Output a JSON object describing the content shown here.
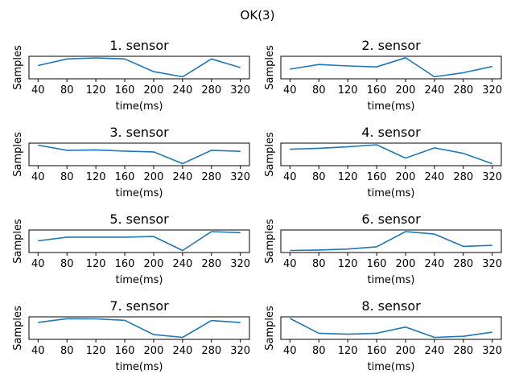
{
  "figure_title": "OK(3)",
  "chart_data": [
    {
      "type": "line",
      "title": "1. sensor",
      "xlabel": "time(ms)",
      "ylabel": "Samples",
      "x": [
        40,
        80,
        120,
        160,
        200,
        240,
        280,
        320
      ],
      "x_ticks": [
        "40",
        "80",
        "120",
        "160",
        "200",
        "240",
        "280",
        "320"
      ],
      "y": [
        0.6,
        0.92,
        0.97,
        0.92,
        0.3,
        0.05,
        0.92,
        0.5
      ],
      "ylim": [
        0,
        1
      ]
    },
    {
      "type": "line",
      "title": "2. sensor",
      "xlabel": "time(ms)",
      "ylabel": "Samples",
      "x": [
        40,
        80,
        120,
        160,
        200,
        240,
        280,
        320
      ],
      "x_ticks": [
        "40",
        "80",
        "120",
        "160",
        "200",
        "240",
        "280",
        "320"
      ],
      "y": [
        0.42,
        0.65,
        0.58,
        0.53,
        0.98,
        0.05,
        0.25,
        0.55
      ],
      "ylim": [
        0,
        1
      ]
    },
    {
      "type": "line",
      "title": "3. sensor",
      "xlabel": "time(ms)",
      "ylabel": "Samples",
      "x": [
        40,
        80,
        120,
        160,
        200,
        240,
        280,
        320
      ],
      "x_ticks": [
        "40",
        "80",
        "120",
        "160",
        "200",
        "240",
        "280",
        "320"
      ],
      "y": [
        0.95,
        0.7,
        0.72,
        0.66,
        0.62,
        0.05,
        0.7,
        0.65
      ],
      "ylim": [
        0,
        1
      ]
    },
    {
      "type": "line",
      "title": "4. sensor",
      "xlabel": "time(ms)",
      "ylabel": "Samples",
      "x": [
        40,
        80,
        120,
        160,
        200,
        240,
        280,
        320
      ],
      "x_ticks": [
        "40",
        "80",
        "120",
        "160",
        "200",
        "240",
        "280",
        "320"
      ],
      "y": [
        0.75,
        0.8,
        0.87,
        0.97,
        0.32,
        0.82,
        0.55,
        0.05
      ],
      "ylim": [
        0,
        1
      ]
    },
    {
      "type": "line",
      "title": "5. sensor",
      "xlabel": "time(ms)",
      "ylabel": "Samples",
      "x": [
        40,
        80,
        120,
        160,
        200,
        240,
        280,
        320
      ],
      "x_ticks": [
        "40",
        "80",
        "120",
        "160",
        "200",
        "240",
        "280",
        "320"
      ],
      "y": [
        0.52,
        0.7,
        0.7,
        0.7,
        0.73,
        0.05,
        0.97,
        0.92
      ],
      "ylim": [
        0,
        1
      ]
    },
    {
      "type": "line",
      "title": "6. sensor",
      "xlabel": "time(ms)",
      "ylabel": "Samples",
      "x": [
        40,
        80,
        120,
        160,
        200,
        240,
        280,
        320
      ],
      "x_ticks": [
        "40",
        "80",
        "120",
        "160",
        "200",
        "240",
        "280",
        "320"
      ],
      "y": [
        0.05,
        0.07,
        0.12,
        0.23,
        0.97,
        0.85,
        0.25,
        0.3
      ],
      "ylim": [
        0,
        1
      ]
    },
    {
      "type": "line",
      "title": "7. sensor",
      "xlabel": "time(ms)",
      "ylabel": "Samples",
      "x": [
        40,
        80,
        120,
        160,
        200,
        240,
        280,
        320
      ],
      "x_ticks": [
        "40",
        "80",
        "120",
        "160",
        "200",
        "240",
        "280",
        "320"
      ],
      "y": [
        0.78,
        0.96,
        0.95,
        0.88,
        0.18,
        0.05,
        0.87,
        0.77
      ],
      "ylim": [
        0,
        1
      ]
    },
    {
      "type": "line",
      "title": "8. sensor",
      "xlabel": "time(ms)",
      "ylabel": "Samples",
      "x": [
        40,
        80,
        120,
        160,
        200,
        240,
        280,
        320
      ],
      "x_ticks": [
        "40",
        "80",
        "120",
        "160",
        "200",
        "240",
        "280",
        "320"
      ],
      "y": [
        0.97,
        0.25,
        0.2,
        0.25,
        0.55,
        0.05,
        0.1,
        0.3
      ],
      "ylim": [
        0,
        1
      ]
    }
  ]
}
